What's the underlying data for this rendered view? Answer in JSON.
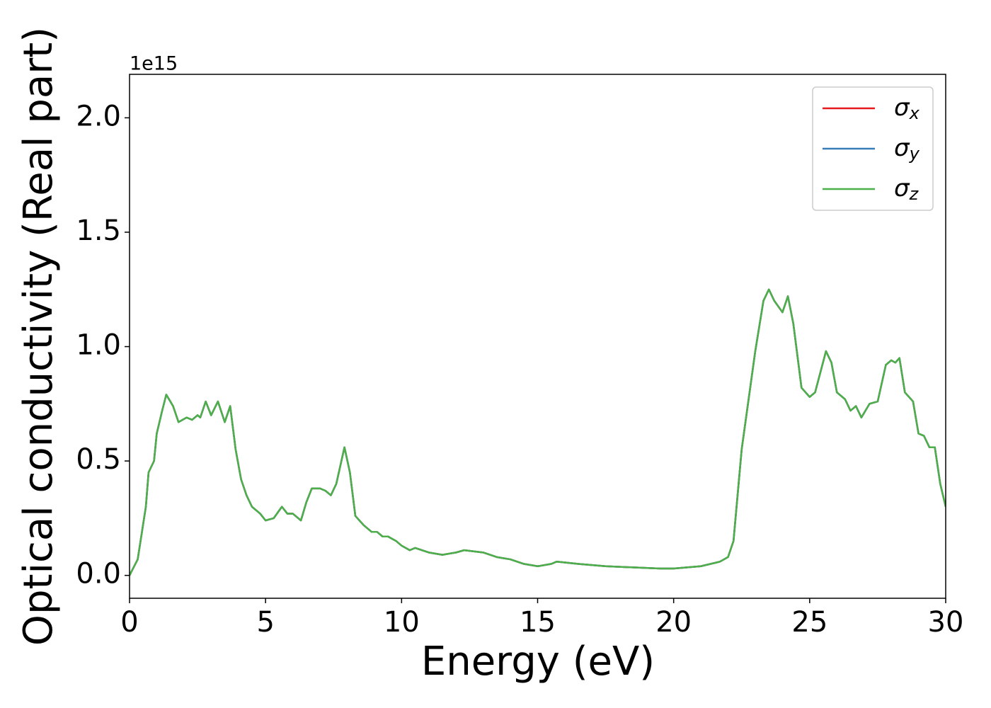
{
  "chart_data": {
    "type": "line",
    "x_label": "Energy (eV)",
    "y_label": "Optical conductivity (Real part)",
    "y_offset_label": "1e15",
    "x": [
      0,
      0.3,
      0.6,
      0.7,
      0.9,
      1.0,
      1.2,
      1.35,
      1.6,
      1.8,
      2.1,
      2.3,
      2.5,
      2.6,
      2.8,
      3.0,
      3.25,
      3.5,
      3.7,
      3.9,
      4.1,
      4.3,
      4.5,
      4.8,
      5.0,
      5.3,
      5.6,
      5.8,
      6.0,
      6.3,
      6.5,
      6.7,
      7.0,
      7.2,
      7.4,
      7.6,
      7.9,
      8.1,
      8.3,
      8.6,
      8.9,
      9.1,
      9.3,
      9.5,
      9.8,
      10.0,
      10.3,
      10.5,
      11.0,
      11.5,
      12.0,
      12.3,
      13.0,
      13.5,
      14.0,
      14.5,
      15.0,
      15.5,
      15.7,
      16.5,
      17.5,
      18.5,
      19.5,
      20.0,
      21.0,
      21.7,
      22.0,
      22.2,
      22.5,
      23.0,
      23.3,
      23.5,
      23.7,
      24.0,
      24.2,
      24.4,
      24.7,
      25.0,
      25.2,
      25.6,
      25.8,
      26.0,
      26.3,
      26.5,
      26.7,
      26.9,
      27.2,
      27.5,
      27.8,
      28.0,
      28.15,
      28.3,
      28.5,
      28.8,
      29.0,
      29.2,
      29.4,
      29.6,
      29.8,
      30.0
    ],
    "series": [
      {
        "name": "σx",
        "color": "#e41a1c",
        "values": [
          0,
          0.07,
          0.3,
          0.45,
          0.5,
          0.62,
          0.72,
          0.79,
          0.74,
          0.67,
          0.69,
          0.68,
          0.7,
          0.69,
          0.76,
          0.7,
          0.76,
          0.67,
          0.74,
          0.55,
          0.42,
          0.35,
          0.3,
          0.27,
          0.24,
          0.25,
          0.3,
          0.27,
          0.27,
          0.24,
          0.32,
          0.38,
          0.38,
          0.37,
          0.35,
          0.4,
          0.56,
          0.45,
          0.26,
          0.22,
          0.19,
          0.19,
          0.17,
          0.17,
          0.15,
          0.13,
          0.11,
          0.12,
          0.1,
          0.09,
          0.1,
          0.11,
          0.1,
          0.08,
          0.07,
          0.05,
          0.04,
          0.05,
          0.06,
          0.05,
          0.04,
          0.035,
          0.03,
          0.03,
          0.04,
          0.06,
          0.08,
          0.15,
          0.55,
          0.98,
          1.2,
          1.25,
          1.2,
          1.15,
          1.22,
          1.1,
          0.82,
          0.78,
          0.8,
          0.98,
          0.93,
          0.8,
          0.77,
          0.72,
          0.74,
          0.69,
          0.75,
          0.76,
          0.92,
          0.94,
          0.93,
          0.95,
          0.8,
          0.76,
          0.62,
          0.61,
          0.56,
          0.56,
          0.4,
          0.3
        ]
      },
      {
        "name": "σy",
        "color": "#377eb8",
        "values": [
          0,
          0.07,
          0.3,
          0.45,
          0.5,
          0.62,
          0.72,
          0.79,
          0.74,
          0.67,
          0.69,
          0.68,
          0.7,
          0.69,
          0.76,
          0.7,
          0.76,
          0.67,
          0.74,
          0.55,
          0.42,
          0.35,
          0.3,
          0.27,
          0.24,
          0.25,
          0.3,
          0.27,
          0.27,
          0.24,
          0.32,
          0.38,
          0.38,
          0.37,
          0.35,
          0.4,
          0.56,
          0.45,
          0.26,
          0.22,
          0.19,
          0.19,
          0.17,
          0.17,
          0.15,
          0.13,
          0.11,
          0.12,
          0.1,
          0.09,
          0.1,
          0.11,
          0.1,
          0.08,
          0.07,
          0.05,
          0.04,
          0.05,
          0.06,
          0.05,
          0.04,
          0.035,
          0.03,
          0.03,
          0.04,
          0.06,
          0.08,
          0.15,
          0.55,
          0.98,
          1.2,
          1.25,
          1.2,
          1.15,
          1.22,
          1.1,
          0.82,
          0.78,
          0.8,
          0.98,
          0.93,
          0.8,
          0.77,
          0.72,
          0.74,
          0.69,
          0.75,
          0.76,
          0.92,
          0.94,
          0.93,
          0.95,
          0.8,
          0.76,
          0.62,
          0.61,
          0.56,
          0.56,
          0.4,
          0.3
        ]
      },
      {
        "name": "σz",
        "color": "#4daf4a",
        "values": [
          0,
          0.07,
          0.3,
          0.45,
          0.5,
          0.62,
          0.72,
          0.79,
          0.74,
          0.67,
          0.69,
          0.68,
          0.7,
          0.69,
          0.76,
          0.7,
          0.76,
          0.67,
          0.74,
          0.55,
          0.42,
          0.35,
          0.3,
          0.27,
          0.24,
          0.25,
          0.3,
          0.27,
          0.27,
          0.24,
          0.32,
          0.38,
          0.38,
          0.37,
          0.35,
          0.4,
          0.56,
          0.45,
          0.26,
          0.22,
          0.19,
          0.19,
          0.17,
          0.17,
          0.15,
          0.13,
          0.11,
          0.12,
          0.1,
          0.09,
          0.1,
          0.11,
          0.1,
          0.08,
          0.07,
          0.05,
          0.04,
          0.05,
          0.06,
          0.05,
          0.04,
          0.035,
          0.03,
          0.03,
          0.04,
          0.06,
          0.08,
          0.15,
          0.55,
          0.98,
          1.2,
          1.25,
          1.2,
          1.15,
          1.22,
          1.1,
          0.82,
          0.78,
          0.8,
          0.98,
          0.93,
          0.8,
          0.77,
          0.72,
          0.74,
          0.69,
          0.75,
          0.76,
          0.92,
          0.94,
          0.93,
          0.95,
          0.8,
          0.76,
          0.62,
          0.61,
          0.56,
          0.56,
          0.4,
          0.3
        ]
      }
    ],
    "xlim": [
      0,
      30
    ],
    "xticks": [
      0,
      5,
      10,
      15,
      20,
      25,
      30
    ],
    "ylim": [
      -0.1,
      2.19
    ],
    "yticks": [
      {
        "value": 0,
        "label": "0.0"
      },
      0.5,
      {
        "value": 1,
        "label": "1.0"
      },
      1.5,
      {
        "value": 2,
        "label": "2.0"
      }
    ],
    "legend": "upper right",
    "grid": false
  }
}
